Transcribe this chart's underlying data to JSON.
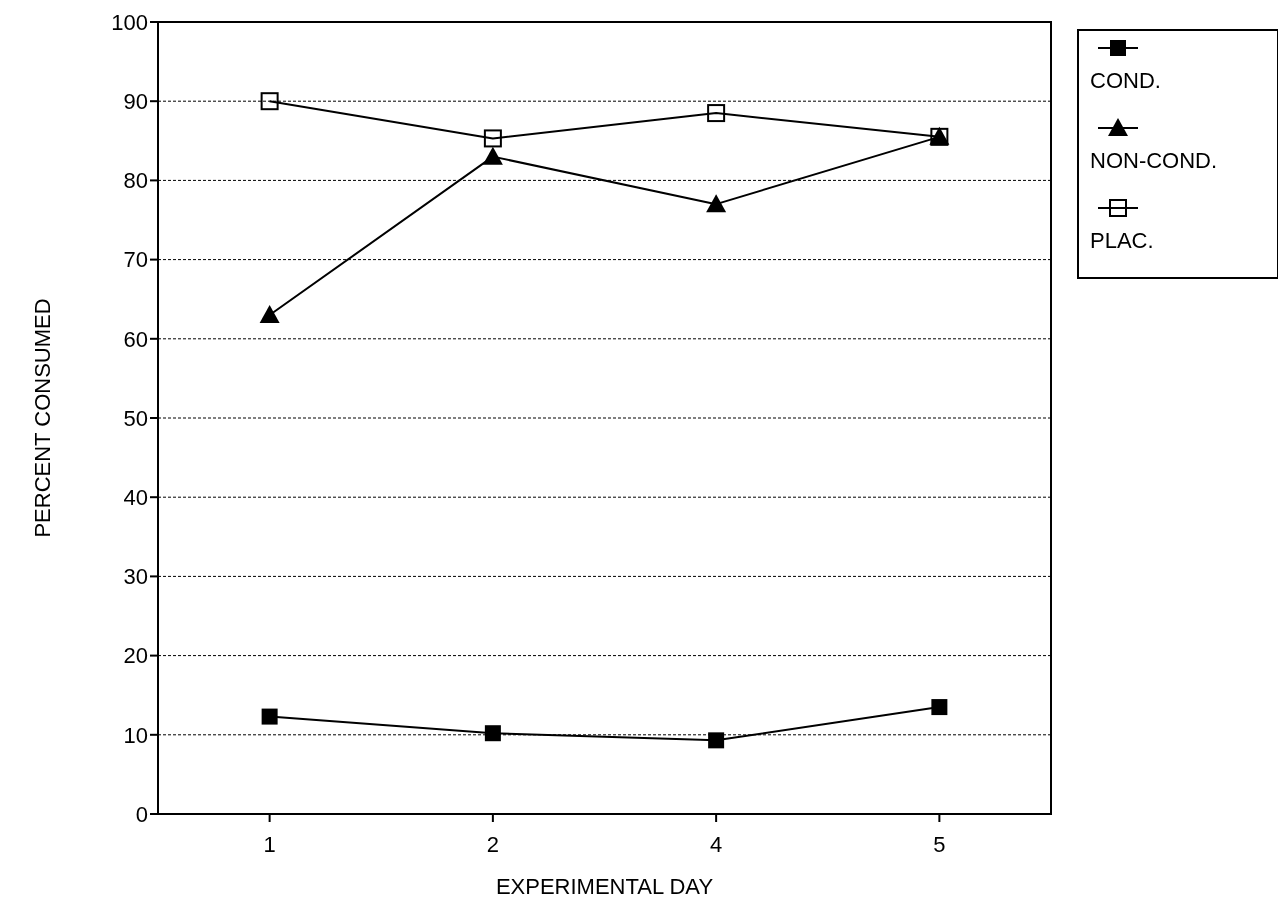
{
  "chart_data": {
    "type": "line",
    "xlabel": "EXPERIMENTAL DAY",
    "ylabel": "PERCENT CONSUMED",
    "categories": [
      "1",
      "2",
      "4",
      "5"
    ],
    "series": [
      {
        "name": "COND.",
        "color": "#000000",
        "marker": "square",
        "values": [
          12.3,
          10.2,
          9.3,
          13.5
        ]
      },
      {
        "name": "NON-COND.",
        "color": "#000000",
        "marker": "triangle",
        "values": [
          63,
          83,
          77,
          85.5
        ]
      },
      {
        "name": "PLAC.",
        "color": "#000000",
        "marker": "square-open",
        "values": [
          90,
          85.3,
          88.5,
          85.5
        ]
      }
    ],
    "ylim": [
      0,
      100
    ],
    "yticks": [
      0,
      10,
      20,
      30,
      40,
      50,
      60,
      70,
      80,
      90,
      100
    ],
    "grid": "y",
    "legend": "top right",
    "line_style": "solid"
  }
}
